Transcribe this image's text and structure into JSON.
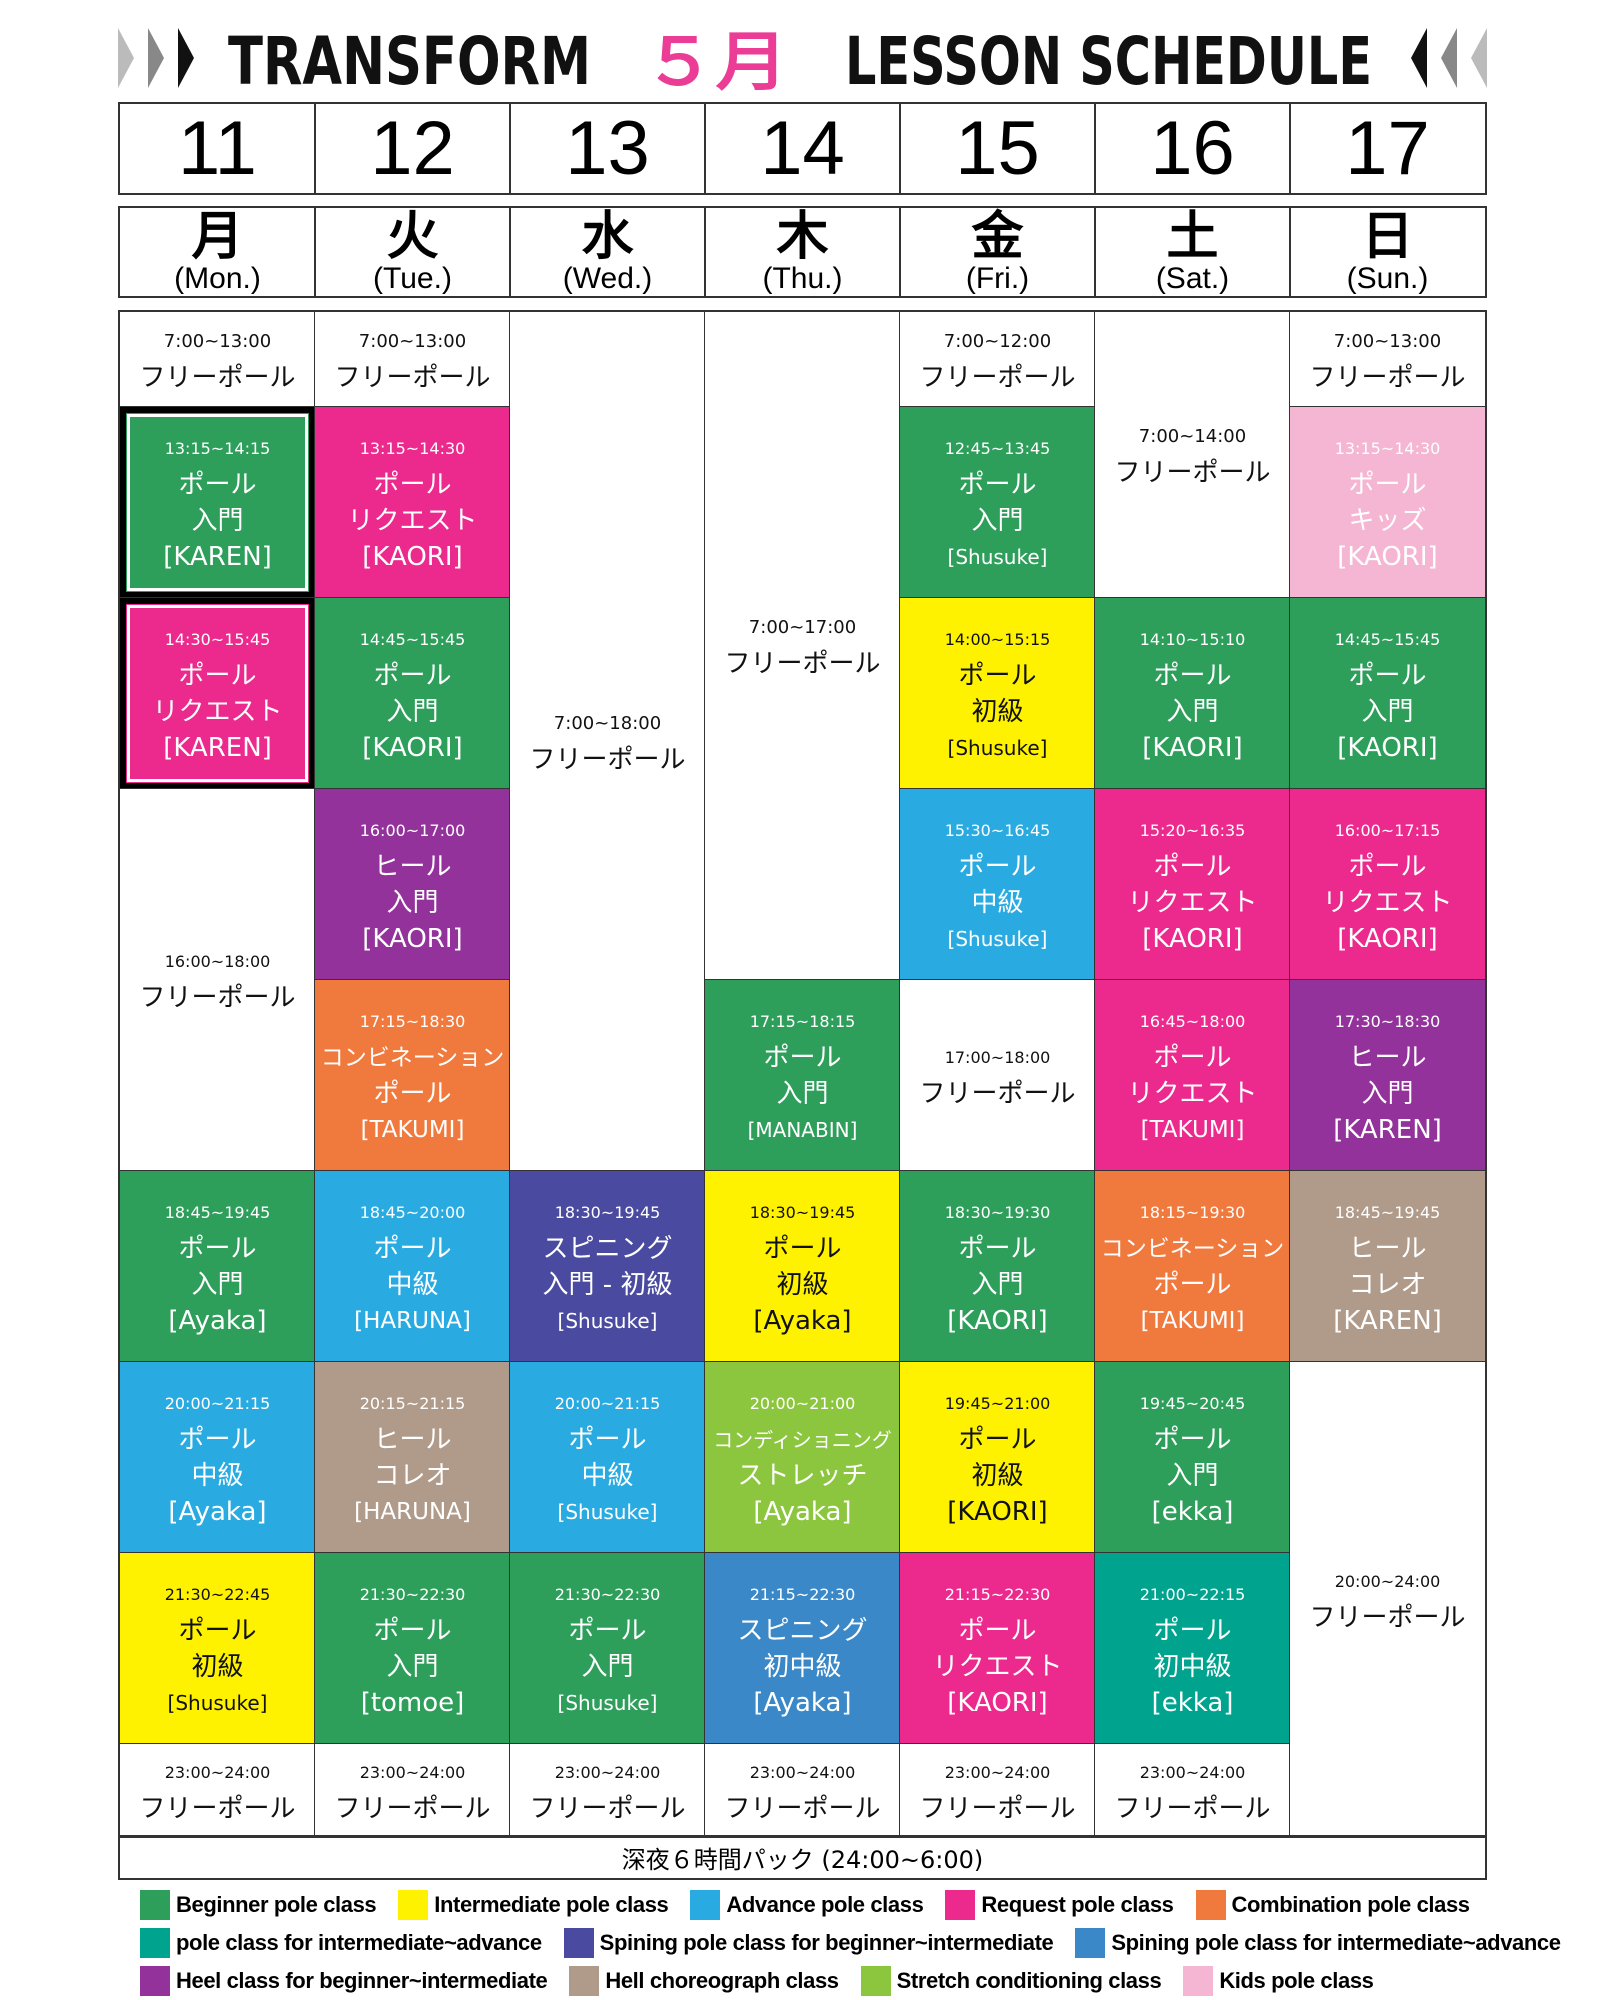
{
  "header": {
    "brand": "TRANSFORM",
    "month": "５月",
    "title": "LESSON SCHEDULE"
  },
  "days": [
    {
      "date": "11",
      "kanji": "月",
      "english": "(Mon.)"
    },
    {
      "date": "12",
      "kanji": "火",
      "english": "(Tue.)"
    },
    {
      "date": "13",
      "kanji": "水",
      "english": "(Wed.)"
    },
    {
      "date": "14",
      "kanji": "木",
      "english": "(Thu.)"
    },
    {
      "date": "15",
      "kanji": "金",
      "english": "(Fri.)"
    },
    {
      "date": "16",
      "kanji": "土",
      "english": "(Sat.)"
    },
    {
      "date": "17",
      "kanji": "日",
      "english": "(Sun.)"
    }
  ],
  "schedule": [
    {
      "cells": [
        {
          "row": 1,
          "span": 1,
          "color": "#ffffff",
          "lines": [
            "7:00~13:00",
            "フリーポール"
          ]
        },
        {
          "row": 2,
          "span": 1,
          "color": "#2e9e5b",
          "highlight": true,
          "lines": [
            "13:15~14:15",
            "ポール",
            "入門",
            "[KAREN]"
          ]
        },
        {
          "row": 3,
          "span": 1,
          "color": "#ec2a8e",
          "highlight": true,
          "lines": [
            "14:30~15:45",
            "ポール",
            "リクエスト",
            "[KAREN]"
          ]
        },
        {
          "row": 4,
          "span": 2,
          "color": "#ffffff",
          "lines": [
            "16:00~18:00",
            "フリーポール"
          ]
        },
        {
          "row": 6,
          "span": 1,
          "color": "#2e9e5b",
          "lines": [
            "18:45~19:45",
            "ポール",
            "入門",
            "[Ayaka]"
          ]
        },
        {
          "row": 7,
          "span": 1,
          "color": "#29abe2",
          "lines": [
            "20:00~21:15",
            "ポール",
            "中級",
            "[Ayaka]"
          ]
        },
        {
          "row": 8,
          "span": 1,
          "color": "#fff200",
          "lines": [
            "21:30~22:45",
            "ポール",
            "初級",
            "[Shusuke]"
          ]
        },
        {
          "row": 9,
          "span": 1,
          "color": "#ffffff",
          "lines": [
            "23:00~24:00",
            "フリーポール"
          ]
        }
      ]
    },
    {
      "cells": [
        {
          "row": 1,
          "span": 1,
          "color": "#ffffff",
          "lines": [
            "7:00~13:00",
            "フリーポール"
          ]
        },
        {
          "row": 2,
          "span": 1,
          "color": "#ec2a8e",
          "lines": [
            "13:15~14:30",
            "ポール",
            "リクエスト",
            "[KAORI]"
          ]
        },
        {
          "row": 3,
          "span": 1,
          "color": "#2e9e5b",
          "lines": [
            "14:45~15:45",
            "ポール",
            "入門",
            "[KAORI]"
          ]
        },
        {
          "row": 4,
          "span": 1,
          "color": "#92329a",
          "lines": [
            "16:00~17:00",
            "ヒール",
            "入門",
            "[KAORI]"
          ]
        },
        {
          "row": 5,
          "span": 1,
          "color": "#f07a3e",
          "lines": [
            "17:15~18:30",
            "コンビネーション",
            "ポール",
            "[TAKUMI]"
          ]
        },
        {
          "row": 6,
          "span": 1,
          "color": "#29abe2",
          "lines": [
            "18:45~20:00",
            "ポール",
            "中級",
            "[HARUNA]"
          ]
        },
        {
          "row": 7,
          "span": 1,
          "color": "#b09a89",
          "lines": [
            "20:15~21:15",
            "ヒール",
            "コレオ",
            "[HARUNA]"
          ]
        },
        {
          "row": 8,
          "span": 1,
          "color": "#2e9e5b",
          "lines": [
            "21:30~22:30",
            "ポール",
            "入門",
            "[tomoe]"
          ]
        },
        {
          "row": 9,
          "span": 1,
          "color": "#ffffff",
          "lines": [
            "23:00~24:00",
            "フリーポール"
          ]
        }
      ]
    },
    {
      "cells": [
        {
          "row": 1,
          "span": 5,
          "color": "#ffffff",
          "lines": [
            "7:00~18:00",
            "フリーポール"
          ]
        },
        {
          "row": 6,
          "span": 1,
          "color": "#4a4ba0",
          "lines": [
            "18:30~19:45",
            "スピニング",
            "入門 - 初級",
            "[Shusuke]"
          ]
        },
        {
          "row": 7,
          "span": 1,
          "color": "#29abe2",
          "lines": [
            "20:00~21:15",
            "ポール",
            "中級",
            "[Shusuke]"
          ]
        },
        {
          "row": 8,
          "span": 1,
          "color": "#2e9e5b",
          "lines": [
            "21:30~22:30",
            "ポール",
            "入門",
            "[Shusuke]"
          ]
        },
        {
          "row": 9,
          "span": 1,
          "color": "#ffffff",
          "lines": [
            "23:00~24:00",
            "フリーポール"
          ]
        }
      ]
    },
    {
      "cells": [
        {
          "row": 1,
          "span": 4,
          "color": "#ffffff",
          "lines": [
            "7:00~17:00",
            "フリーポール"
          ]
        },
        {
          "row": 5,
          "span": 1,
          "color": "#2e9e5b",
          "lines": [
            "17:15~18:15",
            "ポール",
            "入門",
            "[MANABIN]"
          ]
        },
        {
          "row": 6,
          "span": 1,
          "color": "#fff200",
          "lines": [
            "18:30~19:45",
            "ポール",
            "初級",
            "[Ayaka]"
          ]
        },
        {
          "row": 7,
          "span": 1,
          "color": "#8cc63f",
          "lines": [
            "20:00~21:00",
            "コンディショニング",
            "ストレッチ",
            "[Ayaka]"
          ]
        },
        {
          "row": 8,
          "span": 1,
          "color": "#3a88c8",
          "lines": [
            "21:15~22:30",
            "スピニング",
            "初中級",
            "[Ayaka]"
          ]
        },
        {
          "row": 9,
          "span": 1,
          "color": "#ffffff",
          "lines": [
            "23:00~24:00",
            "フリーポール"
          ]
        }
      ]
    },
    {
      "cells": [
        {
          "row": 1,
          "span": 1,
          "color": "#ffffff",
          "lines": [
            "7:00~12:00",
            "フリーポール"
          ]
        },
        {
          "row": 2,
          "span": 1,
          "color": "#2e9e5b",
          "lines": [
            "12:45~13:45",
            "ポール",
            "入門",
            "[Shusuke]"
          ]
        },
        {
          "row": 3,
          "span": 1,
          "color": "#fff200",
          "lines": [
            "14:00~15:15",
            "ポール",
            "初級",
            "[Shusuke]"
          ]
        },
        {
          "row": 4,
          "span": 1,
          "color": "#29abe2",
          "lines": [
            "15:30~16:45",
            "ポール",
            "中級",
            "[Shusuke]"
          ]
        },
        {
          "row": 5,
          "span": 1,
          "color": "#ffffff",
          "lines": [
            "17:00~18:00",
            "フリーポール"
          ]
        },
        {
          "row": 6,
          "span": 1,
          "color": "#2e9e5b",
          "lines": [
            "18:30~19:30",
            "ポール",
            "入門",
            "[KAORI]"
          ]
        },
        {
          "row": 7,
          "span": 1,
          "color": "#fff200",
          "lines": [
            "19:45~21:00",
            "ポール",
            "初級",
            "[KAORI]"
          ]
        },
        {
          "row": 8,
          "span": 1,
          "color": "#ec2a8e",
          "lines": [
            "21:15~22:30",
            "ポール",
            "リクエスト",
            "[KAORI]"
          ]
        },
        {
          "row": 9,
          "span": 1,
          "color": "#ffffff",
          "lines": [
            "23:00~24:00",
            "フリーポール"
          ]
        }
      ]
    },
    {
      "cells": [
        {
          "row": 1,
          "span": 2,
          "color": "#ffffff",
          "lines": [
            "7:00~14:00",
            "フリーポール"
          ]
        },
        {
          "row": 3,
          "span": 1,
          "color": "#2e9e5b",
          "lines": [
            "14:10~15:10",
            "ポール",
            "入門",
            "[KAORI]"
          ]
        },
        {
          "row": 4,
          "span": 1,
          "color": "#ec2a8e",
          "lines": [
            "15:20~16:35",
            "ポール",
            "リクエスト",
            "[KAORI]"
          ]
        },
        {
          "row": 5,
          "span": 1,
          "color": "#ec2a8e",
          "lines": [
            "16:45~18:00",
            "ポール",
            "リクエスト",
            "[TAKUMI]"
          ]
        },
        {
          "row": 6,
          "span": 1,
          "color": "#f07a3e",
          "lines": [
            "18:15~19:30",
            "コンビネーション",
            "ポール",
            "[TAKUMI]"
          ]
        },
        {
          "row": 7,
          "span": 1,
          "color": "#2e9e5b",
          "lines": [
            "19:45~20:45",
            "ポール",
            "入門",
            "[ekka]"
          ]
        },
        {
          "row": 8,
          "span": 1,
          "color": "#00a48e",
          "lines": [
            "21:00~22:15",
            "ポール",
            "初中級",
            "[ekka]"
          ]
        },
        {
          "row": 9,
          "span": 1,
          "color": "#ffffff",
          "lines": [
            "23:00~24:00",
            "フリーポール"
          ]
        }
      ]
    },
    {
      "cells": [
        {
          "row": 1,
          "span": 1,
          "color": "#ffffff",
          "lines": [
            "7:00~13:00",
            "フリーポール"
          ]
        },
        {
          "row": 2,
          "span": 1,
          "color": "#f4b6d2",
          "lines": [
            "13:15~14:30",
            "ポール",
            "キッズ",
            "[KAORI]"
          ]
        },
        {
          "row": 3,
          "span": 1,
          "color": "#2e9e5b",
          "lines": [
            "14:45~15:45",
            "ポール",
            "入門",
            "[KAORI]"
          ]
        },
        {
          "row": 4,
          "span": 1,
          "color": "#ec2a8e",
          "lines": [
            "16:00~17:15",
            "ポール",
            "リクエスト",
            "[KAORI]"
          ]
        },
        {
          "row": 5,
          "span": 1,
          "color": "#92329a",
          "lines": [
            "17:30~18:30",
            "ヒール",
            "入門",
            "[KAREN]"
          ]
        },
        {
          "row": 6,
          "span": 1,
          "color": "#b09a89",
          "lines": [
            "18:45~19:45",
            "ヒール",
            "コレオ",
            "[KAREN]"
          ]
        },
        {
          "row": 7,
          "span": 3,
          "color": "#ffffff",
          "lines": [
            "20:00~24:00",
            "フリーポール"
          ]
        }
      ]
    }
  ],
  "footer": "深夜６時間パック (24:00~6:00)",
  "legend": [
    [
      {
        "color": "#2e9e5b",
        "label": "Beginner pole class"
      },
      {
        "color": "#fff200",
        "label": "Intermediate pole class"
      },
      {
        "color": "#29abe2",
        "label": "Advance pole class"
      },
      {
        "color": "#ec2a8e",
        "label": "Request pole class"
      },
      {
        "color": "#f07a3e",
        "label": "Combination pole class"
      }
    ],
    [
      {
        "color": "#00a48e",
        "label": "pole class for intermediate~advance"
      },
      {
        "color": "#4a4ba0",
        "label": "Spining pole class for beginner~intermediate"
      },
      {
        "color": "#3a88c8",
        "label": "Spining pole class for intermediate~advance"
      }
    ],
    [
      {
        "color": "#92329a",
        "label": "Heel class for beginner~intermediate"
      },
      {
        "color": "#b09a89",
        "label": "Hell choreograph class"
      },
      {
        "color": "#8cc63f",
        "label": "Stretch conditioning class"
      },
      {
        "color": "#f4b6d2",
        "label": "Kids pole class"
      }
    ]
  ]
}
